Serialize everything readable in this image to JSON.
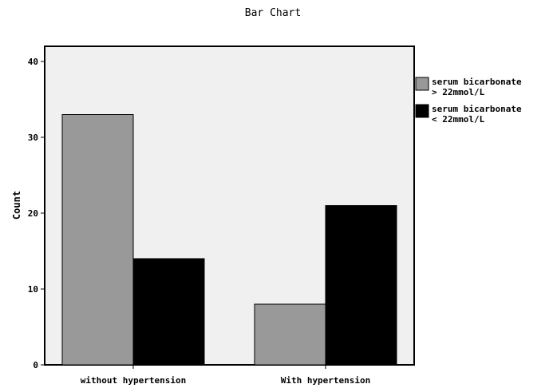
{
  "chart_data": {
    "type": "bar",
    "title": "Bar Chart",
    "xlabel": "",
    "ylabel": "Count",
    "categories": [
      "without hypertension",
      "With hypertension"
    ],
    "series": [
      {
        "name": "serum bicarbonate > 22mmol/L",
        "legend_lines": [
          "serum bicarbonate",
          "> 22mmol/L"
        ],
        "color": "#999999",
        "values": [
          33,
          8
        ]
      },
      {
        "name": "serum bicarbonate < 22mmol/L",
        "legend_lines": [
          "serum bicarbonate",
          "< 22mmol/L"
        ],
        "color": "#000000",
        "values": [
          14,
          21
        ]
      }
    ],
    "ylim": [
      0,
      42
    ],
    "yticks": [
      0,
      10,
      20,
      30,
      40
    ],
    "grid": false,
    "legend_position": "right",
    "plot_background": "#f0f0f0"
  }
}
